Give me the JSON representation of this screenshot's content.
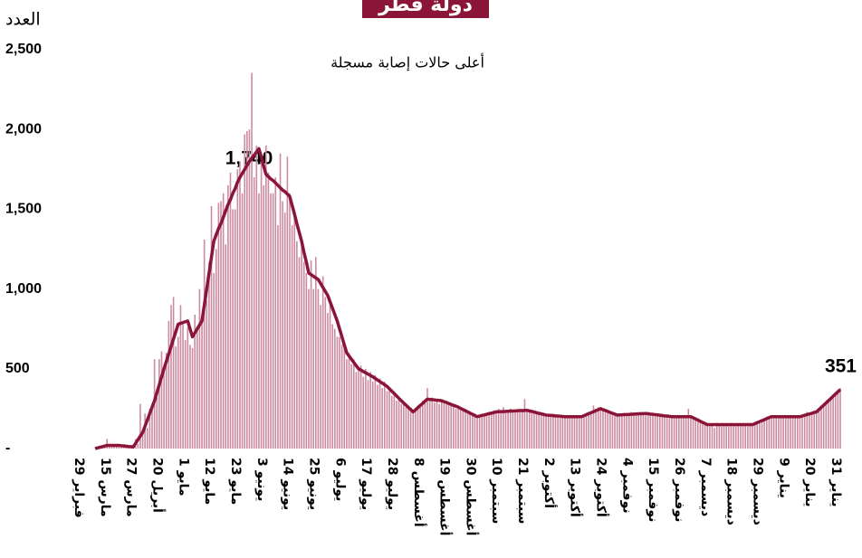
{
  "chart_data": {
    "type": "bar",
    "title": "دولة قطر",
    "y_label": "العدد",
    "annotations": [
      "أعلى حالات إصابة مسجلة",
      "1,740",
      "351"
    ],
    "ylim": [
      0,
      2500
    ],
    "yticks": [
      {
        "value": 0,
        "label": "-"
      },
      500,
      {
        "value": 1000,
        "label": "1,000"
      },
      {
        "value": 1500,
        "label": "1,500"
      },
      {
        "value": 2000,
        "label": "2,000"
      },
      {
        "value": 2500,
        "label": "2,500"
      }
    ],
    "grid": false,
    "categories": [
      "29 فبراير",
      null,
      null,
      null,
      null,
      null,
      null,
      null,
      null,
      null,
      null,
      "15 مارس",
      null,
      null,
      null,
      null,
      null,
      null,
      null,
      null,
      null,
      null,
      "27 مارس",
      null,
      null,
      null,
      null,
      null,
      null,
      null,
      null,
      null,
      null,
      "20 أبريل",
      null,
      null,
      null,
      null,
      null,
      null,
      null,
      null,
      null,
      null,
      "1 مايو",
      null,
      null,
      null,
      null,
      null,
      null,
      null,
      null,
      null,
      null,
      "12 مايو",
      null,
      null,
      null,
      null,
      null,
      null,
      null,
      null,
      null,
      null,
      "23 مايو",
      null,
      null,
      null,
      null,
      null,
      null,
      null,
      null,
      null,
      null,
      "3 يونيو",
      null,
      null,
      null,
      null,
      null,
      null,
      null,
      null,
      null,
      null,
      "14 يونيو",
      null,
      null,
      null,
      null,
      null,
      null,
      null,
      null,
      null,
      null,
      "25 يونيو",
      null,
      null,
      null,
      null,
      null,
      null,
      null,
      null,
      null,
      null,
      "6 يوليو",
      null,
      null,
      null,
      null,
      null,
      null,
      null,
      null,
      null,
      null,
      "17 يوليو",
      null,
      null,
      null,
      null,
      null,
      null,
      null,
      null,
      null,
      null,
      "28 يوليو",
      null,
      null,
      null,
      null,
      null,
      null,
      null,
      null,
      null,
      null,
      "8 أغسطس",
      null,
      null,
      null,
      null,
      null,
      null,
      null,
      null,
      null,
      null,
      "19 أغسطس",
      null,
      null,
      null,
      null,
      null,
      null,
      null,
      null,
      null,
      null,
      "30 أغسطس",
      null,
      null,
      null,
      null,
      null,
      null,
      null,
      null,
      null,
      null,
      "10 سبتمبر",
      null,
      null,
      null,
      null,
      null,
      null,
      null,
      null,
      null,
      null,
      "21 سبتمبر",
      null,
      null,
      null,
      null,
      null,
      null,
      null,
      null,
      null,
      null,
      "2 أكتوبر",
      null,
      null,
      null,
      null,
      null,
      null,
      null,
      null,
      null,
      null,
      "13 أكتوبر",
      null,
      null,
      null,
      null,
      null,
      null,
      null,
      null,
      null,
      null,
      "24 أكتوبر",
      null,
      null,
      null,
      null,
      null,
      null,
      null,
      null,
      null,
      null,
      "4 نوفمبر",
      null,
      null,
      null,
      null,
      null,
      null,
      null,
      null,
      null,
      null,
      "15 نوفمبر",
      null,
      null,
      null,
      null,
      null,
      null,
      null,
      null,
      null,
      null,
      "26 نوفمبر",
      null,
      null,
      null,
      null,
      null,
      null,
      null,
      null,
      null,
      null,
      "7 ديسمبر",
      null,
      null,
      null,
      null,
      null,
      null,
      null,
      null,
      null,
      null,
      "18 ديسمبر",
      null,
      null,
      null,
      null,
      null,
      null,
      null,
      null,
      null,
      null,
      "29 ديسمبر",
      null,
      null,
      null,
      null,
      null,
      null,
      null,
      null,
      null,
      null,
      "9 يناير",
      null,
      null,
      null,
      null,
      null,
      null,
      null,
      null,
      null,
      null,
      "20 يناير",
      null,
      null,
      null,
      null,
      null,
      null,
      null,
      null,
      null,
      null,
      "31 يناير"
    ],
    "series": [
      {
        "type": "bar",
        "color": "#cc8ba1",
        "values": [
          0,
          0,
          0,
          0,
          1,
          3,
          0,
          7,
          10,
          17,
          60,
          20,
          18,
          25,
          15,
          22,
          12,
          25,
          10,
          8,
          14,
          12,
          60,
          30,
          280,
          110,
          220,
          130,
          250,
          280,
          560,
          320,
          560,
          610,
          500,
          600,
          800,
          900,
          950,
          640,
          700,
          900,
          780,
          680,
          760,
          650,
          630,
          840,
          760,
          1000,
          830,
          1310,
          930,
          1170,
          1520,
          1100,
          1250,
          1540,
          1550,
          1600,
          1280,
          1650,
          1730,
          1500,
          1500,
          1750,
          1800,
          1600,
          1970,
          1990,
          2000,
          2355,
          1700,
          1900,
          1600,
          1800,
          1650,
          1900,
          1730,
          1600,
          1600,
          1700,
          1400,
          1850,
          1550,
          1480,
          1830,
          1600,
          1400,
          1450,
          1300,
          1200,
          1280,
          1170,
          1100,
          1000,
          1180,
          1000,
          1200,
          1000,
          900,
          1080,
          950,
          850,
          900,
          780,
          750,
          700,
          700,
          650,
          640,
          560,
          600,
          530,
          560,
          480,
          500,
          520,
          450,
          500,
          430,
          480,
          420,
          460,
          400,
          440,
          380,
          420,
          360,
          380,
          330,
          360,
          300,
          320,
          280,
          290,
          260,
          270,
          230,
          240,
          250,
          270,
          260,
          300,
          290,
          380,
          300,
          320,
          290,
          310,
          280,
          310,
          300,
          280,
          290,
          270,
          280,
          250,
          270,
          260,
          240,
          250,
          220,
          230,
          210,
          220,
          190,
          210,
          200,
          220,
          210,
          230,
          220,
          240,
          230,
          250,
          240,
          260,
          230,
          240,
          250,
          230,
          240,
          250,
          230,
          240,
          310,
          250,
          240,
          230,
          240,
          220,
          230,
          210,
          220,
          200,
          210,
          200,
          220,
          200,
          210,
          200,
          210,
          190,
          200,
          210,
          190,
          200,
          210,
          200,
          205,
          210,
          220,
          230,
          220,
          270,
          240,
          260,
          250,
          250,
          240,
          230,
          220,
          230,
          210,
          220,
          210,
          220,
          210,
          220,
          210,
          230,
          220,
          210,
          220,
          230,
          220,
          230,
          230,
          220,
          210,
          220,
          210,
          200,
          210,
          200,
          210,
          190,
          200,
          210,
          190,
          200,
          210,
          200,
          190,
          250,
          200,
          190,
          180,
          180,
          170,
          160,
          150,
          150,
          140,
          150,
          130,
          160,
          150,
          140,
          150,
          150,
          140,
          160,
          150,
          140,
          150,
          150,
          160,
          150,
          140,
          160,
          150,
          160,
          170,
          160,
          180,
          190,
          200,
          190,
          210,
          200,
          210,
          190,
          200,
          210,
          200,
          190,
          210,
          200,
          200,
          210,
          200,
          210,
          200,
          230,
          220,
          220,
          240,
          230,
          250,
          270,
          280,
          290,
          310,
          320,
          340,
          350,
          360,
          380
        ]
      },
      {
        "type": "line",
        "color": "#8b1538",
        "values": [
          null,
          null,
          null,
          null,
          null,
          0,
          4,
          8,
          12,
          16,
          20,
          20,
          20,
          20,
          20,
          20,
          18,
          17,
          15,
          13,
          12,
          10,
          32,
          55,
          78,
          100,
          140,
          180,
          220,
          260,
          300,
          350,
          400,
          450,
          500,
          547,
          593,
          640,
          687,
          733,
          780,
          785,
          790,
          795,
          800,
          750,
          700,
          725,
          750,
          775,
          800,
          900,
          1000,
          1100,
          1200,
          1300,
          1340,
          1380,
          1410,
          1450,
          1490,
          1530,
          1560,
          1600,
          1630,
          1670,
          1700,
          1725,
          1750,
          1775,
          1800,
          1820,
          1840,
          1860,
          1880,
          1830,
          1770,
          1720,
          1705,
          1690,
          1680,
          1665,
          1650,
          1635,
          1620,
          1610,
          1595,
          1580,
          1525,
          1470,
          1410,
          1355,
          1300,
          1230,
          1170,
          1100,
          1090,
          1080,
          1070,
          1060,
          1035,
          1010,
          985,
          960,
          920,
          880,
          840,
          800,
          750,
          700,
          650,
          600,
          580,
          560,
          540,
          520,
          500,
          492,
          483,
          475,
          467,
          458,
          450,
          440,
          430,
          420,
          410,
          400,
          390,
          375,
          360,
          345,
          330,
          315,
          300,
          286,
          272,
          258,
          244,
          230,
          243,
          257,
          270,
          283,
          297,
          310,
          308,
          307,
          305,
          303,
          302,
          300,
          294,
          289,
          283,
          277,
          271,
          266,
          260,
          252,
          245,
          237,
          230,
          222,
          215,
          207,
          200,
          204,
          208,
          211,
          215,
          219,
          222,
          226,
          230,
          231,
          232,
          232,
          233,
          234,
          235,
          235,
          236,
          237,
          238,
          238,
          239,
          240,
          236,
          233,
          229,
          225,
          221,
          218,
          214,
          210,
          209,
          208,
          206,
          205,
          204,
          203,
          201,
          200,
          200,
          200,
          200,
          200,
          200,
          200,
          200,
          206,
          213,
          219,
          225,
          231,
          238,
          244,
          250,
          244,
          239,
          233,
          227,
          221,
          216,
          210,
          211,
          212,
          213,
          213,
          214,
          215,
          216,
          217,
          218,
          218,
          219,
          220,
          218,
          216,
          215,
          213,
          211,
          209,
          207,
          205,
          204,
          202,
          200,
          200,
          200,
          200,
          200,
          200,
          200,
          200,
          200,
          193,
          186,
          179,
          171,
          164,
          157,
          150,
          150,
          150,
          150,
          150,
          150,
          150,
          150,
          150,
          150,
          150,
          150,
          150,
          150,
          150,
          150,
          150,
          150,
          150,
          150,
          156,
          163,
          169,
          175,
          181,
          188,
          194,
          200,
          200,
          200,
          200,
          200,
          200,
          200,
          200,
          200,
          200,
          200,
          200,
          200,
          204,
          209,
          213,
          217,
          221,
          226,
          230,
          244,
          258,
          272,
          286,
          300,
          314,
          328,
          342,
          356,
          370
        ]
      }
    ]
  }
}
